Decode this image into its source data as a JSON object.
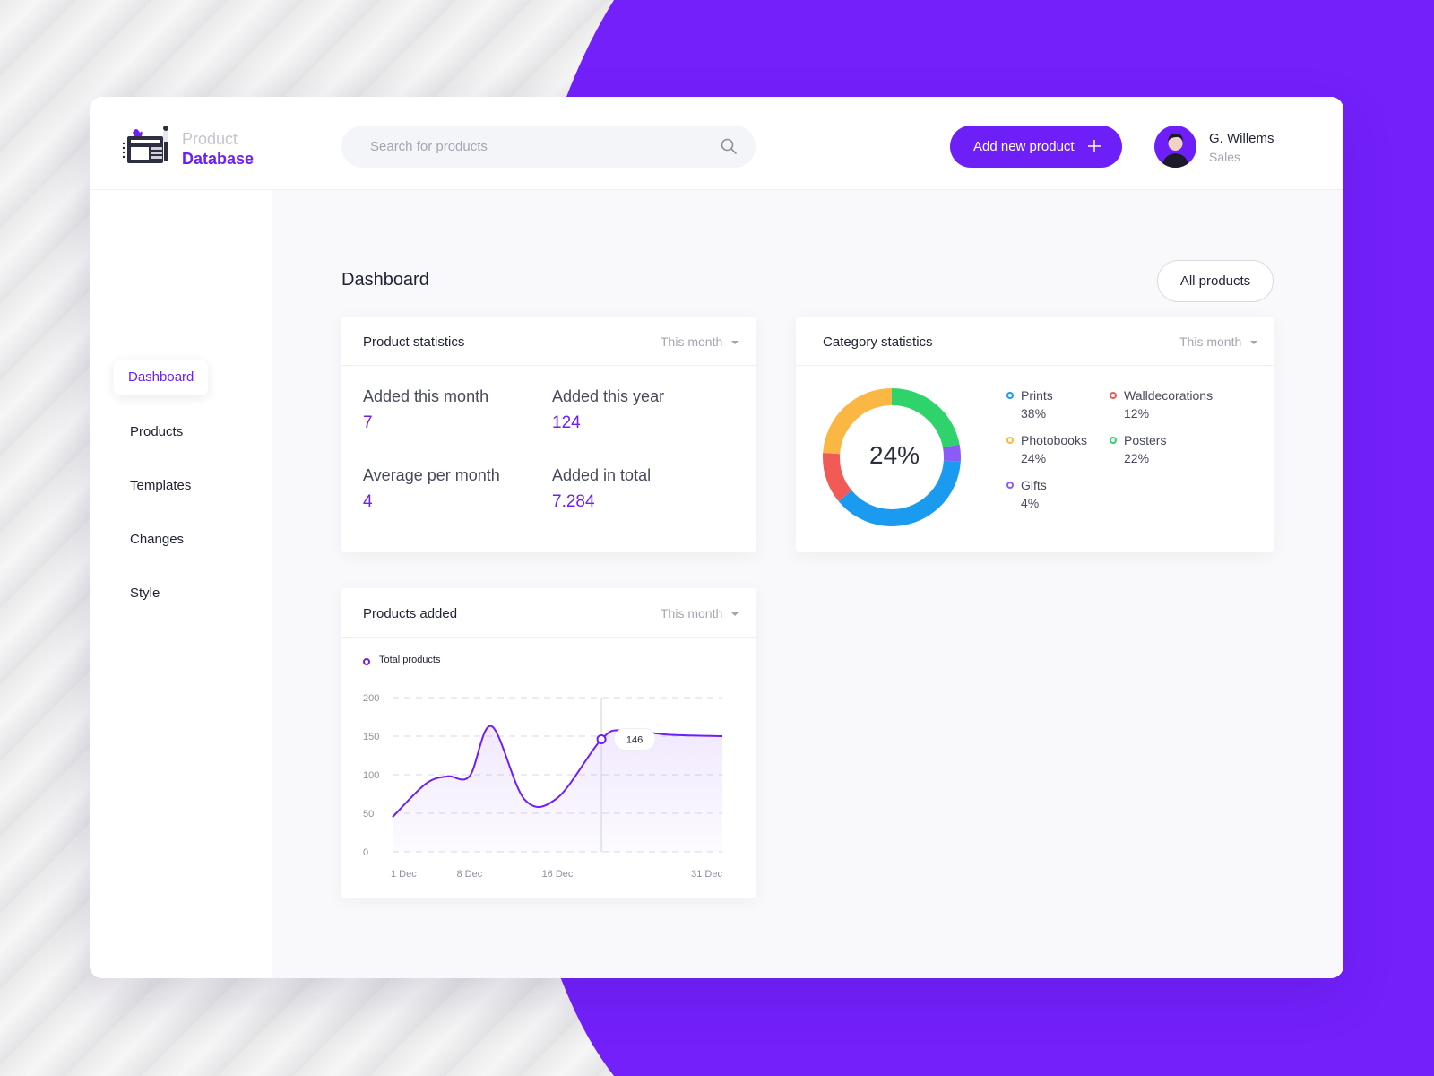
{
  "colors": {
    "accent": "#6e1ff7",
    "text": "#1f2233",
    "muted": "#a3a6b1"
  },
  "header": {
    "logo_line1": "Product",
    "logo_line2": "Database",
    "search_placeholder": "Search for products",
    "add_button_label": "Add new product",
    "user": {
      "name": "G. Willems",
      "role": "Sales"
    }
  },
  "sidebar": {
    "items": [
      {
        "label": "Dashboard",
        "active": true
      },
      {
        "label": "Products"
      },
      {
        "label": "Templates"
      },
      {
        "label": "Changes"
      },
      {
        "label": "Style"
      }
    ],
    "logout_icon": "logout-icon"
  },
  "main": {
    "title": "Dashboard",
    "all_products_label": "All products",
    "product_stats": {
      "title": "Product statistics",
      "period": "This month",
      "stats": [
        {
          "label": "Added this month",
          "value": "7"
        },
        {
          "label": "Added this year",
          "value": "124"
        },
        {
          "label": "Average per month",
          "value": "4"
        },
        {
          "label": "Added in total",
          "value": "7.284"
        }
      ]
    },
    "category_stats": {
      "title": "Category statistics",
      "period": "This month",
      "center_label": "24%",
      "categories": [
        {
          "name": "Prints",
          "pct": "38%",
          "value": 38,
          "color": "#1a9bf0"
        },
        {
          "name": "Walldecorations",
          "pct": "12%",
          "value": 12,
          "color": "#f25a55"
        },
        {
          "name": "Photobooks",
          "pct": "24%",
          "value": 24,
          "color": "#fbb743"
        },
        {
          "name": "Posters",
          "pct": "22%",
          "value": 22,
          "color": "#2fd36b"
        },
        {
          "name": "Gifts",
          "pct": "4%",
          "value": 4,
          "color": "#8a5cf5"
        }
      ]
    },
    "products_added": {
      "title": "Products added",
      "period": "This month"
    }
  },
  "chart_data": {
    "type": "area",
    "series": [
      {
        "name": "Total products",
        "x": [
          1,
          4,
          6,
          8,
          10,
          13,
          16,
          20,
          22,
          26,
          31
        ],
        "values": [
          45,
          88,
          98,
          98,
          163,
          68,
          70,
          146,
          158,
          152,
          150
        ]
      }
    ],
    "x_tick_labels": [
      "1 Dec",
      "8 Dec",
      "16 Dec",
      "31 Dec"
    ],
    "x_tick_values": [
      1,
      8,
      16,
      31
    ],
    "y_ticks": [
      0,
      50,
      100,
      150,
      200
    ],
    "xlim": [
      1,
      31
    ],
    "ylim": [
      0,
      200
    ],
    "grid": true,
    "highlight": {
      "x": 20,
      "value": 146,
      "label": "146"
    }
  }
}
